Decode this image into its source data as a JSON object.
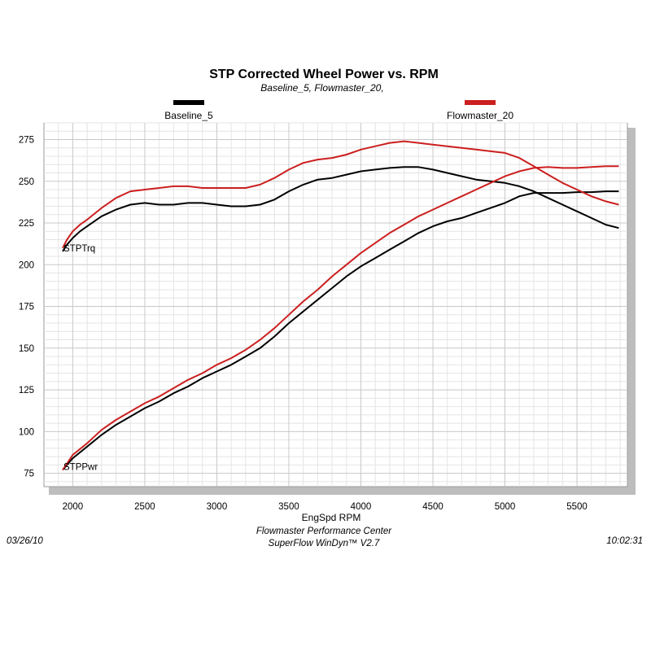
{
  "chart_data": {
    "type": "line",
    "title": "STP Corrected Wheel Power vs. RPM",
    "subtitle": "Baseline_5, Flowmaster_20,",
    "xlabel": "EngSpd  RPM",
    "xlim": [
      1800,
      5850
    ],
    "ylim": [
      67,
      285
    ],
    "x_ticks": [
      2000,
      2500,
      3000,
      3500,
      4000,
      4500,
      5000,
      5500
    ],
    "y_ticks": [
      75,
      100,
      125,
      150,
      175,
      200,
      225,
      250,
      275
    ],
    "grid": true,
    "legend": [
      {
        "label": "Baseline_5",
        "color": "#000000"
      },
      {
        "label": "Flowmaster_20",
        "color": "#cc1f1f"
      }
    ],
    "series": [
      {
        "name": "Baseline_5",
        "curve_label": "STPTrq",
        "color": "#000000",
        "points": [
          [
            1930,
            208
          ],
          [
            1960,
            212
          ],
          [
            2000,
            216
          ],
          [
            2050,
            220
          ],
          [
            2100,
            223
          ],
          [
            2200,
            229
          ],
          [
            2300,
            233
          ],
          [
            2400,
            236
          ],
          [
            2500,
            237
          ],
          [
            2600,
            236
          ],
          [
            2700,
            236
          ],
          [
            2800,
            237
          ],
          [
            2900,
            237
          ],
          [
            3000,
            236
          ],
          [
            3100,
            235
          ],
          [
            3200,
            235
          ],
          [
            3300,
            236
          ],
          [
            3400,
            239
          ],
          [
            3500,
            244
          ],
          [
            3600,
            248
          ],
          [
            3700,
            251
          ],
          [
            3800,
            252
          ],
          [
            3900,
            254
          ],
          [
            4000,
            256
          ],
          [
            4100,
            257
          ],
          [
            4200,
            258
          ],
          [
            4300,
            258.5
          ],
          [
            4400,
            258.5
          ],
          [
            4500,
            257
          ],
          [
            4600,
            255
          ],
          [
            4700,
            253
          ],
          [
            4800,
            251
          ],
          [
            4900,
            250
          ],
          [
            5000,
            249
          ],
          [
            5100,
            247
          ],
          [
            5200,
            244
          ],
          [
            5300,
            240
          ],
          [
            5400,
            236
          ],
          [
            5500,
            232
          ],
          [
            5600,
            228
          ],
          [
            5700,
            224
          ],
          [
            5790,
            222
          ]
        ]
      },
      {
        "name": "Baseline_5",
        "curve_label": "STPPwr",
        "color": "#000000",
        "points": [
          [
            1930,
            77
          ],
          [
            2000,
            84
          ],
          [
            2100,
            91
          ],
          [
            2200,
            98
          ],
          [
            2300,
            104
          ],
          [
            2400,
            109
          ],
          [
            2500,
            114
          ],
          [
            2600,
            118
          ],
          [
            2700,
            123
          ],
          [
            2800,
            127
          ],
          [
            2900,
            132
          ],
          [
            3000,
            136
          ],
          [
            3100,
            140
          ],
          [
            3200,
            145
          ],
          [
            3300,
            150
          ],
          [
            3400,
            157
          ],
          [
            3500,
            165
          ],
          [
            3600,
            172
          ],
          [
            3700,
            179
          ],
          [
            3800,
            186
          ],
          [
            3900,
            193
          ],
          [
            4000,
            199
          ],
          [
            4100,
            204
          ],
          [
            4200,
            209
          ],
          [
            4300,
            214
          ],
          [
            4400,
            219
          ],
          [
            4500,
            223
          ],
          [
            4600,
            226
          ],
          [
            4700,
            228
          ],
          [
            4800,
            231
          ],
          [
            4900,
            234
          ],
          [
            5000,
            237
          ],
          [
            5100,
            241
          ],
          [
            5200,
            243
          ],
          [
            5300,
            243
          ],
          [
            5400,
            243
          ],
          [
            5500,
            243.5
          ],
          [
            5600,
            243.5
          ],
          [
            5700,
            244
          ],
          [
            5790,
            244
          ]
        ]
      },
      {
        "name": "Flowmaster_20",
        "curve_label": "STPTrq",
        "color": "#cc1f1f",
        "points": [
          [
            1930,
            210
          ],
          [
            1960,
            215
          ],
          [
            2000,
            220
          ],
          [
            2050,
            224
          ],
          [
            2100,
            227
          ],
          [
            2200,
            234
          ],
          [
            2300,
            240
          ],
          [
            2400,
            244
          ],
          [
            2500,
            245
          ],
          [
            2600,
            246
          ],
          [
            2700,
            247
          ],
          [
            2800,
            247
          ],
          [
            2900,
            246
          ],
          [
            3000,
            246
          ],
          [
            3100,
            246
          ],
          [
            3200,
            246
          ],
          [
            3300,
            248
          ],
          [
            3400,
            252
          ],
          [
            3500,
            257
          ],
          [
            3600,
            261
          ],
          [
            3700,
            263
          ],
          [
            3800,
            264
          ],
          [
            3900,
            266
          ],
          [
            4000,
            269
          ],
          [
            4100,
            271
          ],
          [
            4200,
            273
          ],
          [
            4300,
            274
          ],
          [
            4400,
            273
          ],
          [
            4500,
            272
          ],
          [
            4600,
            271
          ],
          [
            4700,
            270
          ],
          [
            4800,
            269
          ],
          [
            4900,
            268
          ],
          [
            5000,
            267
          ],
          [
            5100,
            264
          ],
          [
            5200,
            259
          ],
          [
            5300,
            254
          ],
          [
            5400,
            249
          ],
          [
            5500,
            245
          ],
          [
            5600,
            241
          ],
          [
            5700,
            238
          ],
          [
            5790,
            236
          ]
        ]
      },
      {
        "name": "Flowmaster_20",
        "curve_label": "STPPwr",
        "color": "#cc1f1f",
        "points": [
          [
            1930,
            77
          ],
          [
            2000,
            86
          ],
          [
            2100,
            93
          ],
          [
            2200,
            101
          ],
          [
            2300,
            107
          ],
          [
            2400,
            112
          ],
          [
            2500,
            117
          ],
          [
            2600,
            121
          ],
          [
            2700,
            126
          ],
          [
            2800,
            131
          ],
          [
            2900,
            135
          ],
          [
            3000,
            140
          ],
          [
            3100,
            144
          ],
          [
            3200,
            149
          ],
          [
            3300,
            155
          ],
          [
            3400,
            162
          ],
          [
            3500,
            170
          ],
          [
            3600,
            178
          ],
          [
            3700,
            185
          ],
          [
            3800,
            193
          ],
          [
            3900,
            200
          ],
          [
            4000,
            207
          ],
          [
            4100,
            213
          ],
          [
            4200,
            219
          ],
          [
            4300,
            224
          ],
          [
            4400,
            229
          ],
          [
            4500,
            233
          ],
          [
            4600,
            237
          ],
          [
            4700,
            241
          ],
          [
            4800,
            245
          ],
          [
            4900,
            249
          ],
          [
            5000,
            253
          ],
          [
            5100,
            256
          ],
          [
            5200,
            258
          ],
          [
            5300,
            258.5
          ],
          [
            5400,
            258
          ],
          [
            5500,
            258
          ],
          [
            5600,
            258.5
          ],
          [
            5700,
            259
          ],
          [
            5790,
            259
          ]
        ]
      }
    ]
  },
  "footer": {
    "date": "03/26/10",
    "center_line1": "Flowmaster Performance Center",
    "center_line2": "SuperFlow WinDyn™ V2.7",
    "time": "10:02:31"
  }
}
